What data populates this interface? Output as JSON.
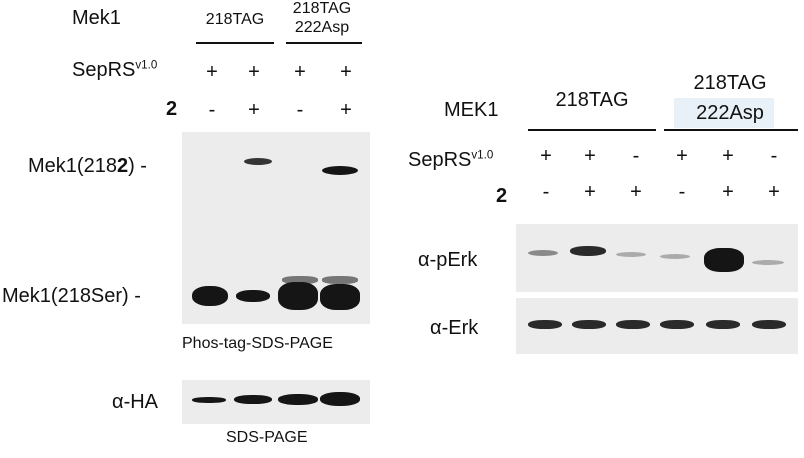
{
  "left": {
    "protein_label": "Mek1",
    "construct_1": "218TAG",
    "construct_2_line1": "218TAG",
    "construct_2_line2": "222Asp",
    "sepRS_base": "SepRS",
    "sepRS_sup": "v1.0",
    "sepRS_signs": [
      "+",
      "+",
      "+",
      "+"
    ],
    "compound_label": "2",
    "compound_signs": [
      "-",
      "+",
      "-",
      "+"
    ],
    "band_label_top_prefix": "Mek1(218",
    "band_label_top_bold": "2",
    "band_label_top_suffix": ") -",
    "band_label_bottom": "Mek1(218Ser) -",
    "phos_tag_caption": "Phos-tag-SDS-PAGE",
    "ha_label": "α-HA",
    "sds_caption": "SDS-PAGE"
  },
  "right": {
    "protein_label": "MEK1",
    "construct_1": "218TAG",
    "construct_2_line1": "218TAG",
    "construct_2_line2": "222Asp",
    "sepRS_base": "SepRS",
    "sepRS_sup": "v1.0",
    "sepRS_signs": [
      "+",
      "+",
      "-",
      "+",
      "+",
      "-"
    ],
    "compound_label": "2",
    "compound_signs": [
      "-",
      "+",
      "+",
      "-",
      "+",
      "+"
    ],
    "perk_label": "α-pErk",
    "erk_label": "α-Erk"
  },
  "colors": {
    "band": "#151515",
    "gel": "#ececec",
    "highlight": "#e8f1f8"
  }
}
